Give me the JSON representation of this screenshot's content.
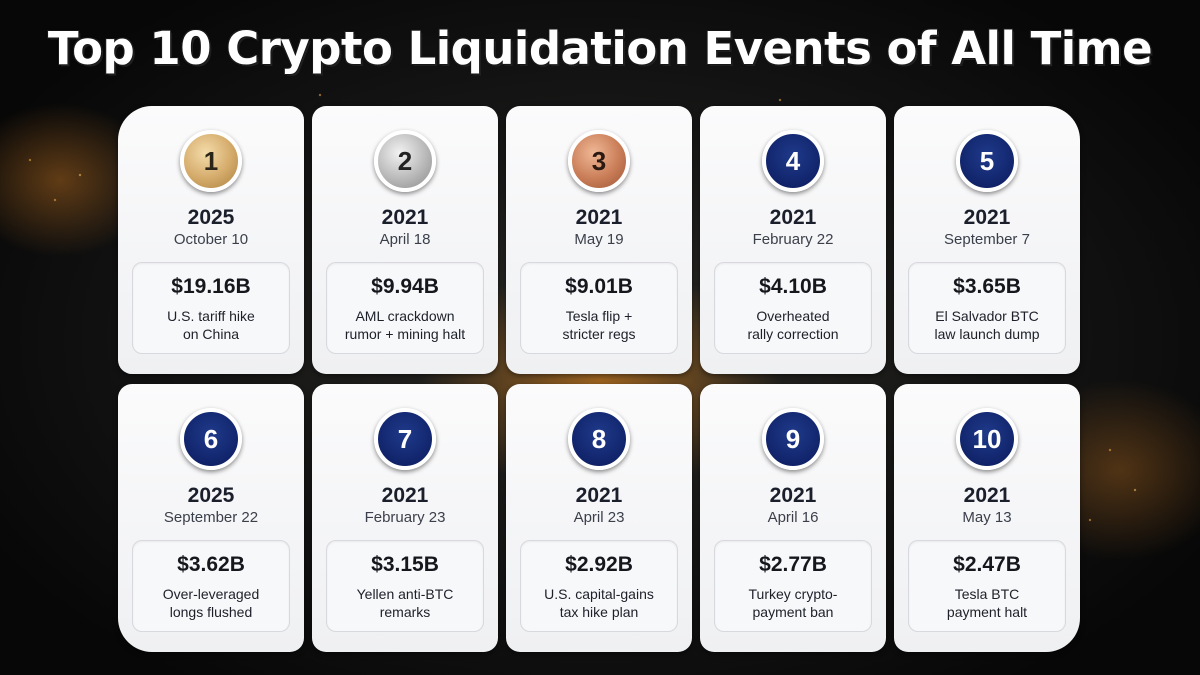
{
  "title": "Top 10 Crypto Liquidation Events of All Time",
  "events": [
    {
      "rank": "1",
      "medal": "gold",
      "year": "2025",
      "date": "October 10",
      "amount": "$19.16B",
      "reason": "U.S. tariff hike\non China"
    },
    {
      "rank": "2",
      "medal": "silver",
      "year": "2021",
      "date": "April 18",
      "amount": "$9.94B",
      "reason": "AML crackdown\nrumor + mining halt"
    },
    {
      "rank": "3",
      "medal": "bronze",
      "year": "2021",
      "date": "May 19",
      "amount": "$9.01B",
      "reason": "Tesla flip +\nstricter regs"
    },
    {
      "rank": "4",
      "medal": "navy",
      "year": "2021",
      "date": "February 22",
      "amount": "$4.10B",
      "reason": "Overheated\nrally correction"
    },
    {
      "rank": "5",
      "medal": "navy",
      "year": "2021",
      "date": "September 7",
      "amount": "$3.65B",
      "reason": "El Salvador BTC\nlaw launch dump"
    },
    {
      "rank": "6",
      "medal": "navy",
      "year": "2025",
      "date": "September 22",
      "amount": "$3.62B",
      "reason": "Over-leveraged\nlongs flushed"
    },
    {
      "rank": "7",
      "medal": "navy",
      "year": "2021",
      "date": "February 23",
      "amount": "$3.15B",
      "reason": "Yellen anti-BTC\nremarks"
    },
    {
      "rank": "8",
      "medal": "navy",
      "year": "2021",
      "date": "April 23",
      "amount": "$2.92B",
      "reason": "U.S. capital-gains\ntax hike plan"
    },
    {
      "rank": "9",
      "medal": "navy",
      "year": "2021",
      "date": "April 16",
      "amount": "$2.77B",
      "reason": "Turkey crypto-\npayment ban"
    },
    {
      "rank": "10",
      "medal": "navy",
      "year": "2021",
      "date": "May 13",
      "amount": "$2.47B",
      "reason": "Tesla BTC\npayment halt"
    }
  ],
  "colors": {
    "navy_medal": "#11246b",
    "gold_medal": "#d4aa6a",
    "silver_medal": "#b9b9b9",
    "bronze_medal": "#c97d57",
    "card_background": "#f5f6f8",
    "glow": "#ff9a1e"
  }
}
